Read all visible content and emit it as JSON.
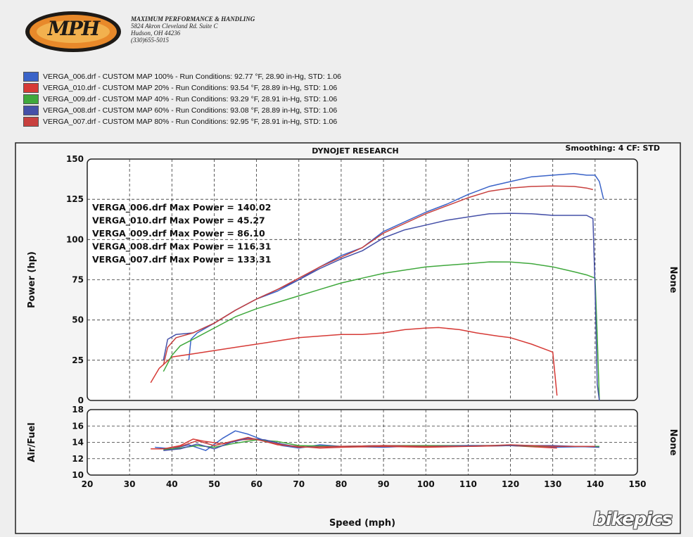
{
  "company": {
    "logo_text": "MPH",
    "name": "MAXIMUM PERFORMANCE & HANDLING",
    "address1": "5824 Akron Cleveland Rd. Suite C",
    "address2": "Hudson, OH 44236",
    "phone": "(330)655-5015"
  },
  "legend": [
    {
      "label": "VERGA_006.drf - CUSTOM MAP 100%  -  Run Conditions: 92.77 °F, 28.90 in-Hg, STD: 1.06",
      "color": "#3a63c8"
    },
    {
      "label": "VERGA_010.drf - CUSTOM MAP 20%  -  Run Conditions: 93.54 °F, 28.89 in-Hg, STD: 1.06",
      "color": "#d63a36"
    },
    {
      "label": "VERGA_009.drf - CUSTOM MAP 40%  -  Run Conditions: 93.29 °F, 28.91 in-Hg, STD: 1.06",
      "color": "#3fa83c"
    },
    {
      "label": "VERGA_008.drf - CUSTOM MAP 60%  -  Run Conditions: 93.08 °F, 28.89 in-Hg, STD: 1.06",
      "color": "#4550a8"
    },
    {
      "label": "VERGA_007.drf - CUSTOM MAP 80%  -  Run Conditions: 92.95 °F, 28.91 in-Hg, STD: 1.06",
      "color": "#c8403e"
    }
  ],
  "chart_data": [
    {
      "type": "line",
      "title": "DYNOJET RESEARCH",
      "subtitle": "Smoothing: 4  CF: STD",
      "xlabel": "Speed (mph)",
      "ylabel": "Power (hp)",
      "right_label": "None",
      "xlim": [
        20,
        150
      ],
      "ylim": [
        0,
        150
      ],
      "xticks": [
        20,
        30,
        40,
        50,
        60,
        70,
        80,
        90,
        100,
        110,
        120,
        130,
        140,
        150
      ],
      "yticks": [
        0,
        25,
        50,
        75,
        100,
        125,
        150
      ],
      "grid": true,
      "annotations": [
        "VERGA_006.drf Max Power = 140.02",
        "VERGA_010.drf Max Power = 45.27",
        "VERGA_009.drf Max Power = 86.10",
        "VERGA_008.drf Max Power = 116.31",
        "VERGA_007.drf Max Power = 133.31"
      ],
      "series": [
        {
          "name": "VERGA_006.drf",
          "color": "#3a63c8",
          "points": [
            [
              44,
              25
            ],
            [
              44.5,
              38
            ],
            [
              46,
              42
            ],
            [
              50,
              48
            ],
            [
              55,
              56
            ],
            [
              60,
              63
            ],
            [
              65,
              68
            ],
            [
              70,
              75
            ],
            [
              75,
              83
            ],
            [
              80,
              90
            ],
            [
              85,
              95
            ],
            [
              90,
              105
            ],
            [
              95,
              111
            ],
            [
              100,
              117
            ],
            [
              105,
              122
            ],
            [
              110,
              128
            ],
            [
              115,
              133
            ],
            [
              120,
              136
            ],
            [
              125,
              139
            ],
            [
              130,
              140
            ],
            [
              135,
              141
            ],
            [
              138,
              140
            ],
            [
              140,
              140
            ],
            [
              141,
              136
            ],
            [
              142,
              125
            ]
          ]
        },
        {
          "name": "VERGA_010.drf",
          "color": "#d63a36",
          "points": [
            [
              35,
              11
            ],
            [
              37,
              20
            ],
            [
              40,
              27
            ],
            [
              45,
              29
            ],
            [
              50,
              31
            ],
            [
              55,
              33
            ],
            [
              60,
              35
            ],
            [
              65,
              37
            ],
            [
              70,
              39
            ],
            [
              75,
              40
            ],
            [
              80,
              41
            ],
            [
              85,
              41
            ],
            [
              90,
              42
            ],
            [
              95,
              44
            ],
            [
              100,
              45
            ],
            [
              103,
              45.3
            ],
            [
              108,
              44
            ],
            [
              112,
              42
            ],
            [
              117,
              40
            ],
            [
              120,
              39
            ],
            [
              125,
              35
            ],
            [
              129,
              31
            ],
            [
              130,
              30
            ],
            [
              131,
              3
            ]
          ]
        },
        {
          "name": "VERGA_009.drf",
          "color": "#3fa83c",
          "points": [
            [
              38,
              18
            ],
            [
              40,
              28
            ],
            [
              42,
              34
            ],
            [
              45,
              38
            ],
            [
              50,
              45
            ],
            [
              55,
              52
            ],
            [
              60,
              57
            ],
            [
              65,
              61
            ],
            [
              70,
              65
            ],
            [
              75,
              69
            ],
            [
              80,
              73
            ],
            [
              85,
              76
            ],
            [
              90,
              79
            ],
            [
              95,
              81
            ],
            [
              100,
              83
            ],
            [
              105,
              84
            ],
            [
              110,
              85
            ],
            [
              115,
              86.1
            ],
            [
              120,
              86
            ],
            [
              125,
              85
            ],
            [
              130,
              83
            ],
            [
              135,
              80
            ],
            [
              138,
              78
            ],
            [
              140,
              76
            ],
            [
              140.5,
              40
            ],
            [
              141,
              0
            ]
          ]
        },
        {
          "name": "VERGA_008.drf",
          "color": "#4550a8",
          "points": [
            [
              38,
              25
            ],
            [
              39,
              38
            ],
            [
              41,
              41
            ],
            [
              45,
              42
            ],
            [
              50,
              48
            ],
            [
              55,
              56
            ],
            [
              60,
              63
            ],
            [
              65,
              69
            ],
            [
              70,
              75
            ],
            [
              75,
              82
            ],
            [
              80,
              88
            ],
            [
              85,
              93
            ],
            [
              90,
              101
            ],
            [
              95,
              106
            ],
            [
              100,
              109
            ],
            [
              105,
              112
            ],
            [
              110,
              114
            ],
            [
              115,
              116
            ],
            [
              120,
              116.3
            ],
            [
              125,
              116
            ],
            [
              130,
              115
            ],
            [
              135,
              115
            ],
            [
              138,
              115
            ],
            [
              139.5,
              113
            ],
            [
              140,
              70
            ],
            [
              140.5,
              10
            ],
            [
              141,
              0
            ]
          ]
        },
        {
          "name": "VERGA_007.drf",
          "color": "#c8403e",
          "points": [
            [
              38,
              22
            ],
            [
              39,
              33
            ],
            [
              41,
              39
            ],
            [
              45,
              42
            ],
            [
              50,
              48
            ],
            [
              55,
              56
            ],
            [
              60,
              63
            ],
            [
              65,
              69
            ],
            [
              70,
              76
            ],
            [
              75,
              83
            ],
            [
              80,
              89
            ],
            [
              85,
              95
            ],
            [
              90,
              104
            ],
            [
              95,
              110
            ],
            [
              100,
              116
            ],
            [
              105,
              121
            ],
            [
              110,
              126
            ],
            [
              115,
              130
            ],
            [
              120,
              132
            ],
            [
              125,
              133
            ],
            [
              130,
              133.3
            ],
            [
              135,
              133
            ],
            [
              138,
              132
            ],
            [
              139.5,
              131
            ]
          ]
        }
      ]
    },
    {
      "type": "line",
      "ylabel": "Air/Fuel",
      "right_label": "None",
      "xlim": [
        20,
        150
      ],
      "ylim": [
        10,
        18
      ],
      "yticks": [
        10,
        12,
        14,
        16,
        18
      ],
      "xticks": [
        20,
        30,
        40,
        50,
        60,
        70,
        80,
        90,
        100,
        110,
        120,
        130,
        140,
        150
      ],
      "grid": true,
      "series": [
        {
          "name": "VERGA_006.drf",
          "color": "#3a63c8",
          "points": [
            [
              36,
              13.4
            ],
            [
              40,
              13.2
            ],
            [
              44,
              13.7
            ],
            [
              48,
              13.0
            ],
            [
              52,
              14.5
            ],
            [
              55,
              15.4
            ],
            [
              58,
              15.0
            ],
            [
              62,
              14.2
            ],
            [
              66,
              13.6
            ],
            [
              70,
              13.3
            ],
            [
              75,
              13.7
            ],
            [
              80,
              13.5
            ],
            [
              90,
              13.4
            ],
            [
              100,
              13.6
            ],
            [
              110,
              13.5
            ],
            [
              120,
              13.6
            ],
            [
              130,
              13.4
            ],
            [
              141,
              13.5
            ]
          ]
        },
        {
          "name": "VERGA_010.drf",
          "color": "#d63a36",
          "points": [
            [
              35,
              13.2
            ],
            [
              38,
              13.2
            ],
            [
              42,
              13.6
            ],
            [
              45,
              14.4
            ],
            [
              48,
              14.1
            ],
            [
              52,
              13.8
            ],
            [
              56,
              14.3
            ],
            [
              60,
              14.4
            ],
            [
              65,
              13.7
            ],
            [
              70,
              13.5
            ],
            [
              75,
              13.3
            ],
            [
              80,
              13.4
            ],
            [
              90,
              13.5
            ],
            [
              100,
              13.4
            ],
            [
              110,
              13.5
            ],
            [
              120,
              13.6
            ],
            [
              131,
              13.3
            ]
          ]
        },
        {
          "name": "VERGA_009.drf",
          "color": "#3fa83c",
          "points": [
            [
              38,
              13.1
            ],
            [
              42,
              13.3
            ],
            [
              46,
              13.6
            ],
            [
              50,
              13.4
            ],
            [
              55,
              13.9
            ],
            [
              60,
              14.3
            ],
            [
              65,
              14.1
            ],
            [
              70,
              13.6
            ],
            [
              80,
              13.5
            ],
            [
              90,
              13.6
            ],
            [
              100,
              13.6
            ],
            [
              110,
              13.6
            ],
            [
              120,
              13.6
            ],
            [
              130,
              13.5
            ],
            [
              141,
              13.5
            ]
          ]
        },
        {
          "name": "VERGA_008.drf",
          "color": "#4550a8",
          "points": [
            [
              38,
              13.0
            ],
            [
              42,
              13.2
            ],
            [
              46,
              13.8
            ],
            [
              50,
              13.2
            ],
            [
              54,
              14.0
            ],
            [
              58,
              14.5
            ],
            [
              62,
              14.3
            ],
            [
              66,
              13.8
            ],
            [
              70,
              13.4
            ],
            [
              80,
              13.5
            ],
            [
              90,
              13.6
            ],
            [
              100,
              13.5
            ],
            [
              110,
              13.6
            ],
            [
              120,
              13.6
            ],
            [
              130,
              13.6
            ],
            [
              141,
              13.4
            ]
          ]
        },
        {
          "name": "VERGA_007.drf",
          "color": "#c8403e",
          "points": [
            [
              38,
              13.2
            ],
            [
              42,
              13.5
            ],
            [
              46,
              14.2
            ],
            [
              50,
              13.6
            ],
            [
              54,
              14.1
            ],
            [
              58,
              14.6
            ],
            [
              62,
              14.1
            ],
            [
              66,
              13.7
            ],
            [
              70,
              13.4
            ],
            [
              80,
              13.5
            ],
            [
              90,
              13.6
            ],
            [
              100,
              13.5
            ],
            [
              110,
              13.5
            ],
            [
              120,
              13.7
            ],
            [
              130,
              13.5
            ],
            [
              140,
              13.5
            ]
          ]
        }
      ]
    }
  ],
  "watermark": "bikepics"
}
